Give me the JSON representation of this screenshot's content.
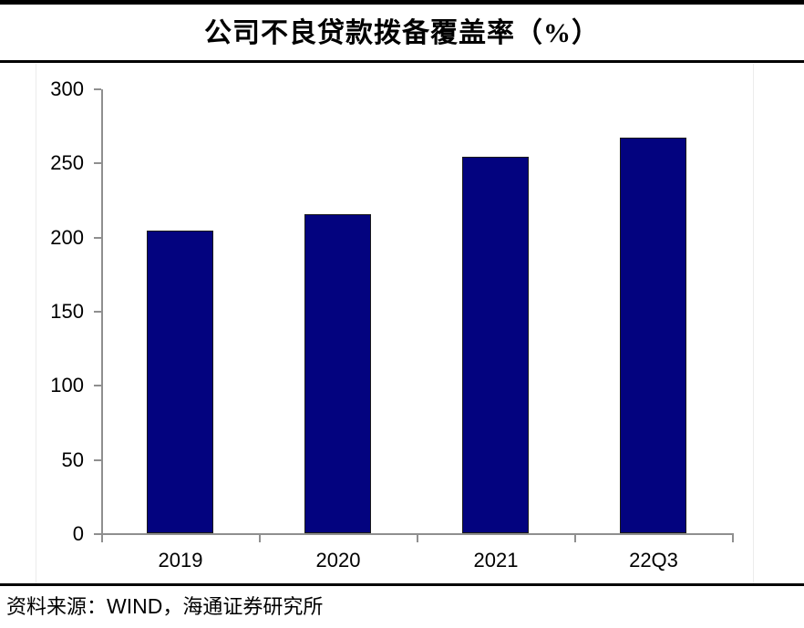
{
  "header": {
    "title": "公司不良贷款拨备覆盖率（%）"
  },
  "footer": {
    "prefix": "资料来源：",
    "source_en": "WIND",
    "suffix": "，海通证券研究所"
  },
  "chart_data": {
    "type": "bar",
    "title": "公司不良贷款拨备覆盖率（%）",
    "categories": [
      "2019",
      "2020",
      "2021",
      "22Q3"
    ],
    "values": [
      204,
      215,
      254,
      267
    ],
    "xlabel": "",
    "ylabel": "",
    "ylim": [
      0,
      300
    ],
    "yticks": [
      0,
      50,
      100,
      150,
      200,
      250,
      300
    ],
    "grid": false,
    "legend": "none",
    "bar_color": "#03037F",
    "bar_border_color": "#1a1a1a",
    "axis_color": "#8F8F8F",
    "tick_label_color": "#000000"
  }
}
